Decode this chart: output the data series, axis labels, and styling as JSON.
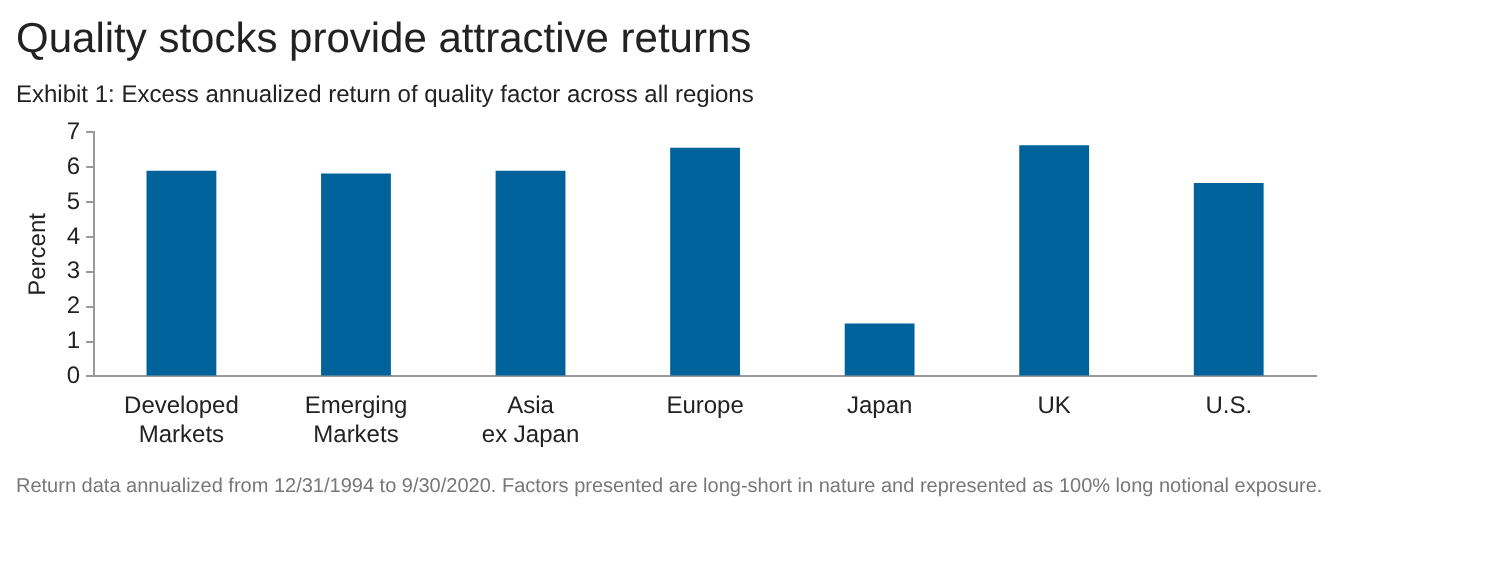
{
  "chart_data": {
    "type": "bar",
    "title": "Quality stocks provide attractive returns",
    "subtitle": "Exhibit 1: Excess annualized return of quality factor across all regions",
    "ylabel": "Percent",
    "categories": [
      "Developed\nMarkets",
      "Emerging\nMarkets",
      "Asia\nex Japan",
      "Europe",
      "Japan",
      "UK",
      "U.S."
    ],
    "values": [
      5.9,
      5.82,
      5.9,
      6.56,
      1.52,
      6.63,
      5.55
    ],
    "color": "#00629b",
    "ylim": [
      0,
      7
    ],
    "yticks": [
      0,
      1,
      2,
      3,
      4,
      5,
      6,
      7
    ],
    "grid": false,
    "legend": false,
    "annotations": [
      "Return data annualized from 12/31/1994 to 9/30/2020. Factors presented are long-short in nature and represented as 100% long notional exposure."
    ]
  }
}
